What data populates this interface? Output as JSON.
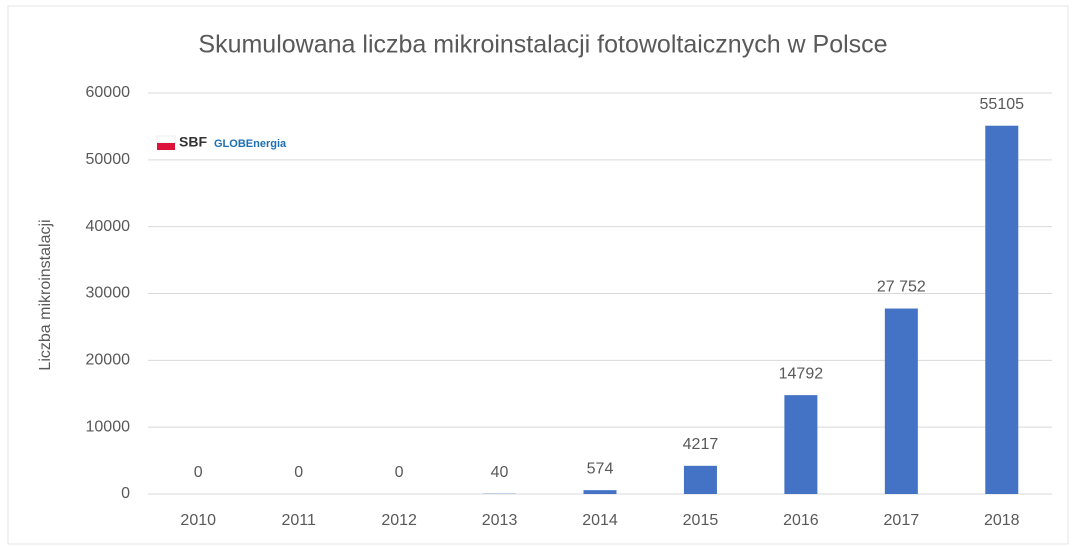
{
  "chart_data": {
    "type": "bar",
    "title": "Skumulowana liczba mikroinstalacji fotowoltaicznych w Polsce",
    "y_label": "Liczba mikroinstalacji",
    "categories": [
      "2010",
      "2011",
      "2012",
      "2013",
      "2014",
      "2015",
      "2016",
      "2017",
      "2018"
    ],
    "values": [
      0,
      0,
      0,
      40,
      574,
      4217,
      14792,
      27752,
      55105
    ],
    "value_labels": [
      "0",
      "0",
      "0",
      "40",
      "574",
      "4217",
      "14792",
      "27 752",
      "55105"
    ],
    "color": "#4472c4",
    "ylim": [
      0,
      60000
    ],
    "yticks": [
      0,
      10000,
      20000,
      30000,
      40000,
      50000,
      60000
    ],
    "grid": true
  },
  "logo": {
    "brand": "SBF",
    "partner": "GLOBEnergia"
  }
}
